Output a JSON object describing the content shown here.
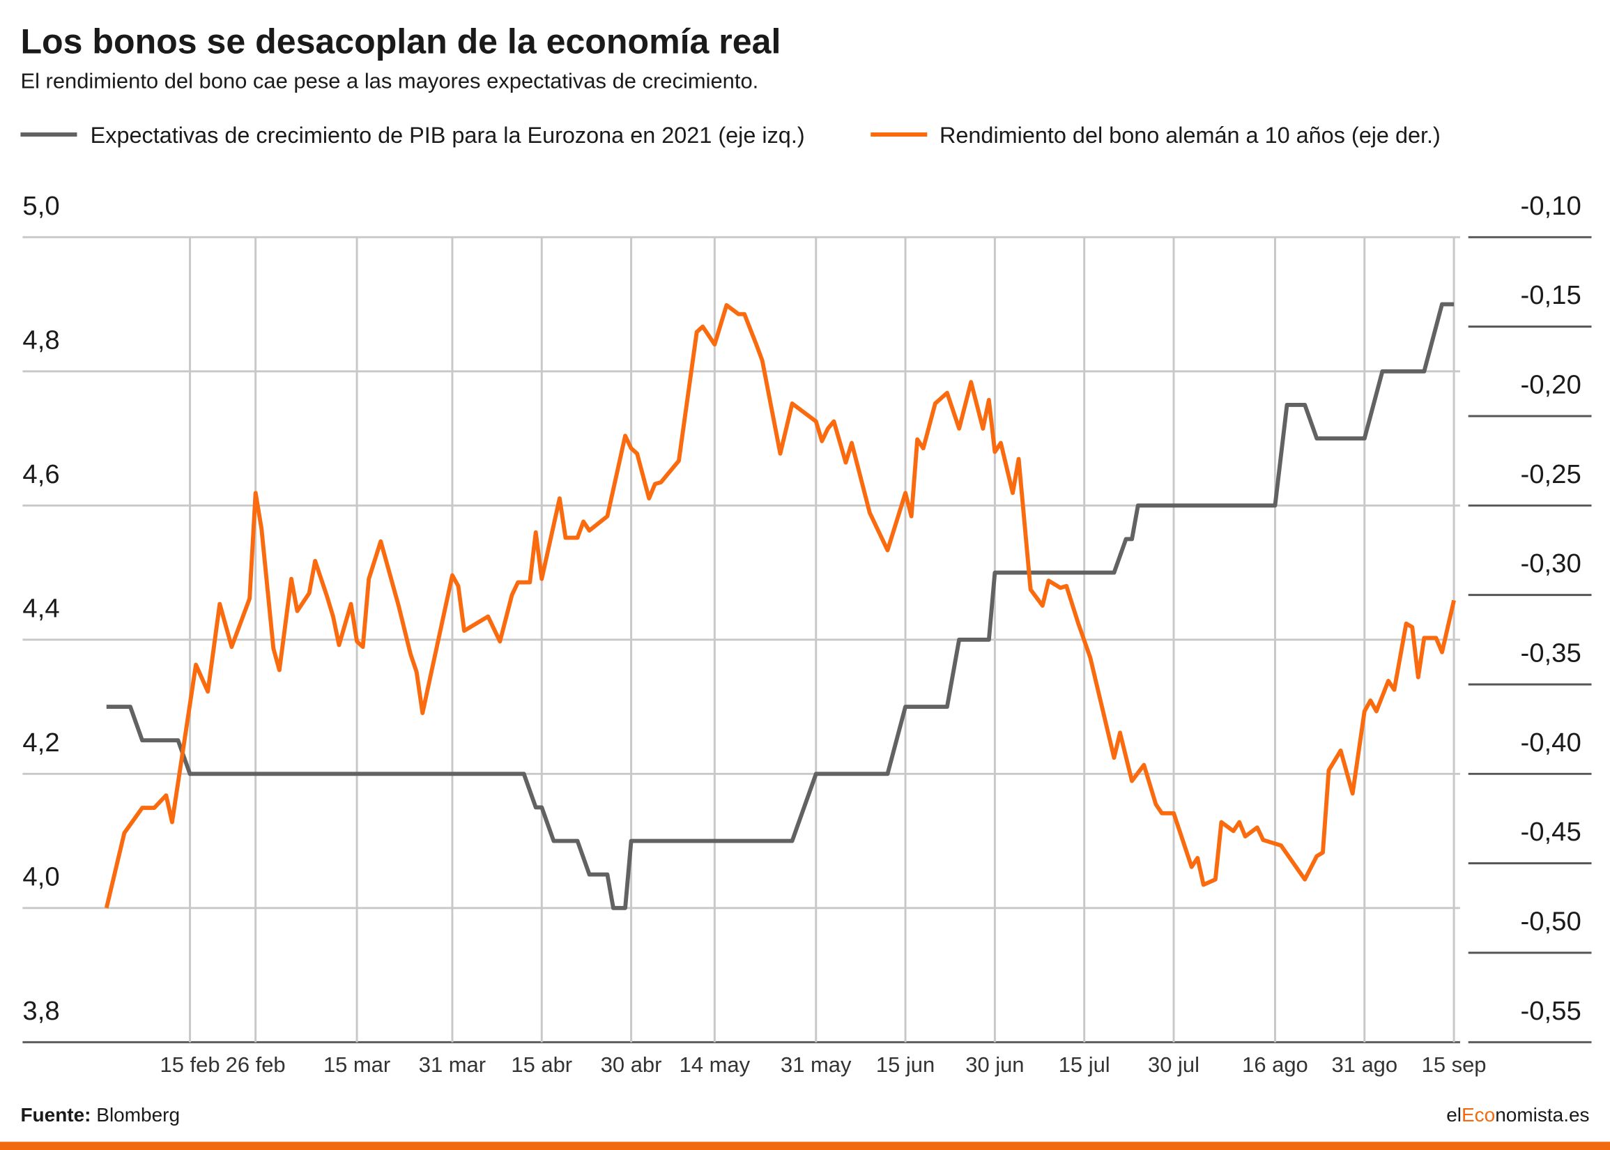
{
  "chart_data": {
    "type": "line",
    "title": "Los bonos se desacoplan de la economía real",
    "subtitle": "El rendimiento del bono cae pese a las mayores expectativas de crecimiento.",
    "xticks": [
      "15 feb",
      "26 feb",
      "15 mar",
      "31 mar",
      "15 abr",
      "30 abr",
      "14 may",
      "31 may",
      "15 jun",
      "30 jun",
      "15 jul",
      "30 jul",
      "16 ago",
      "31 ago",
      "15 sep"
    ],
    "ylim": [
      3.8,
      5.0
    ],
    "yticks": [
      {
        "value": 3.8,
        "label": "3,8"
      },
      {
        "value": 4.0,
        "label": "4,0"
      },
      {
        "value": 4.2,
        "label": "4,2"
      },
      {
        "value": 4.4,
        "label": "4,4"
      },
      {
        "value": 4.6,
        "label": "4,6"
      },
      {
        "value": 4.8,
        "label": "4,8"
      },
      {
        "value": 5.0,
        "label": "5,0"
      }
    ],
    "y2lim": [
      -0.55,
      -0.1
    ],
    "y2ticks": [
      {
        "value": -0.55,
        "label": "-0,55"
      },
      {
        "value": -0.5,
        "label": "-0,50"
      },
      {
        "value": -0.45,
        "label": "-0,45"
      },
      {
        "value": -0.4,
        "label": "-0,40"
      },
      {
        "value": -0.35,
        "label": "-0,35"
      },
      {
        "value": -0.3,
        "label": "-0,30"
      },
      {
        "value": -0.25,
        "label": "-0,25"
      },
      {
        "value": -0.2,
        "label": "-0,20"
      },
      {
        "value": -0.15,
        "label": "-0,15"
      },
      {
        "value": -0.1,
        "label": "-0,10"
      }
    ],
    "grid": true,
    "series": [
      {
        "name": "Expectativas de crecimiento de PIB para la Eurozona en 2021 (eje izq.)",
        "color": "#626262",
        "axis": "y",
        "x": [
          "1 feb",
          "5 feb",
          "7 feb",
          "13 feb",
          "15 feb",
          "12 abr",
          "14 abr",
          "15 abr",
          "17 abr",
          "21 abr",
          "23 abr",
          "26 abr",
          "27 abr",
          "29 abr",
          "30 abr",
          "27 may",
          "31 may",
          "12 jun",
          "15 jun",
          "22 jun",
          "24 jun",
          "29 jun",
          "30 jun",
          "20 jul",
          "22 jul",
          "23 jul",
          "24 jul",
          "16 ago",
          "18 ago",
          "21 ago",
          "23 ago",
          "31 ago",
          "3 sep",
          "10 sep",
          "13 sep",
          "15 sep"
        ],
        "values": [
          4.3,
          4.3,
          4.25,
          4.25,
          4.2,
          4.2,
          4.15,
          4.15,
          4.1,
          4.1,
          4.05,
          4.05,
          4.0,
          4.0,
          4.1,
          4.1,
          4.2,
          4.2,
          4.3,
          4.3,
          4.4,
          4.4,
          4.5,
          4.5,
          4.55,
          4.55,
          4.6,
          4.6,
          4.75,
          4.75,
          4.7,
          4.7,
          4.8,
          4.8,
          4.9,
          4.9
        ]
      },
      {
        "name": "Rendimiento del bono alemán a 10 años (eje der.)",
        "color": "#fa6a0e",
        "axis": "y2",
        "x": [
          "1 feb",
          "4 feb",
          "7 feb",
          "9 feb",
          "11 feb",
          "12 feb",
          "16 feb",
          "18 feb",
          "20 feb",
          "22 feb",
          "25 feb",
          "26 feb",
          "27 feb",
          "1 mar",
          "2 mar",
          "4 mar",
          "5 mar",
          "7 mar",
          "8 mar",
          "10 mar",
          "11 mar",
          "12 mar",
          "14 mar",
          "15 mar",
          "16 mar",
          "17 mar",
          "19 mar",
          "22 mar",
          "24 mar",
          "25 mar",
          "26 mar",
          "31 mar",
          "1 abr",
          "2 abr",
          "6 abr",
          "8 abr",
          "10 abr",
          "11 abr",
          "13 abr",
          "14 abr",
          "15 abr",
          "18 abr",
          "19 abr",
          "21 abr",
          "22 abr",
          "23 abr",
          "26 abr",
          "29 abr",
          "30 abr",
          "1 may",
          "3 may",
          "4 may",
          "5 may",
          "7 may",
          "8 may",
          "11 may",
          "12 may",
          "14 may",
          "16 may",
          "18 may",
          "19 may",
          "21 may",
          "22 may",
          "25 may",
          "27 may",
          "31 may",
          "1 jun",
          "2 jun",
          "3 jun",
          "5 jun",
          "6 jun",
          "9 jun",
          "12 jun",
          "15 jun",
          "16 jun",
          "17 jun",
          "18 jun",
          "20 jun",
          "22 jun",
          "24 jun",
          "26 jun",
          "28 jun",
          "29 jun",
          "30 jun",
          "1 jul",
          "3 jul",
          "4 jul",
          "6 jul",
          "8 jul",
          "9 jul",
          "11 jul",
          "12 jul",
          "14 jul",
          "16 jul",
          "20 jul",
          "21 jul",
          "23 jul",
          "25 jul",
          "27 jul",
          "28 jul",
          "30 jul",
          "2 ago",
          "3 ago",
          "4 ago",
          "6 ago",
          "7 ago",
          "9 ago",
          "10 ago",
          "11 ago",
          "13 ago",
          "14 ago",
          "17 ago",
          "21 ago",
          "23 ago",
          "24 ago",
          "25 ago",
          "27 ago",
          "29 ago",
          "31 ago",
          "1 sep",
          "2 sep",
          "4 sep",
          "5 sep",
          "7 sep",
          "8 sep",
          "9 sep",
          "10 sep",
          "12 sep",
          "13 sep",
          "15 sep"
        ],
        "values": [
          -0.475,
          -0.433,
          -0.419,
          -0.419,
          -0.412,
          -0.427,
          -0.339,
          -0.354,
          -0.305,
          -0.329,
          -0.302,
          -0.243,
          -0.263,
          -0.33,
          -0.342,
          -0.291,
          -0.309,
          -0.299,
          -0.281,
          -0.301,
          -0.312,
          -0.328,
          -0.305,
          -0.326,
          -0.329,
          -0.291,
          -0.27,
          -0.306,
          -0.333,
          -0.343,
          -0.366,
          -0.289,
          -0.295,
          -0.32,
          -0.312,
          -0.326,
          -0.3,
          -0.293,
          -0.293,
          -0.265,
          -0.291,
          -0.246,
          -0.268,
          -0.268,
          -0.259,
          -0.264,
          -0.256,
          -0.211,
          -0.218,
          -0.221,
          -0.246,
          -0.238,
          -0.237,
          -0.229,
          -0.225,
          -0.153,
          -0.15,
          -0.16,
          -0.138,
          -0.143,
          -0.143,
          -0.16,
          -0.169,
          -0.221,
          -0.193,
          -0.203,
          -0.214,
          -0.207,
          -0.203,
          -0.226,
          -0.215,
          -0.254,
          -0.275,
          -0.243,
          -0.256,
          -0.213,
          -0.218,
          -0.193,
          -0.187,
          -0.207,
          -0.181,
          -0.207,
          -0.191,
          -0.22,
          -0.215,
          -0.243,
          -0.224,
          -0.297,
          -0.306,
          -0.292,
          -0.296,
          -0.295,
          -0.316,
          -0.335,
          -0.391,
          -0.377,
          -0.404,
          -0.395,
          -0.417,
          -0.422,
          -0.422,
          -0.452,
          -0.447,
          -0.462,
          -0.459,
          -0.427,
          -0.432,
          -0.427,
          -0.435,
          -0.43,
          -0.437,
          -0.44,
          -0.459,
          -0.446,
          -0.444,
          -0.398,
          -0.387,
          -0.411,
          -0.365,
          -0.359,
          -0.365,
          -0.348,
          -0.353,
          -0.316,
          -0.318,
          -0.346,
          -0.324,
          -0.324,
          -0.332,
          -0.303
        ]
      }
    ],
    "source": {
      "label": "Fuente:",
      "text": "Blomberg"
    },
    "brand": [
      "el",
      "Eco",
      "nomista.es"
    ]
  }
}
